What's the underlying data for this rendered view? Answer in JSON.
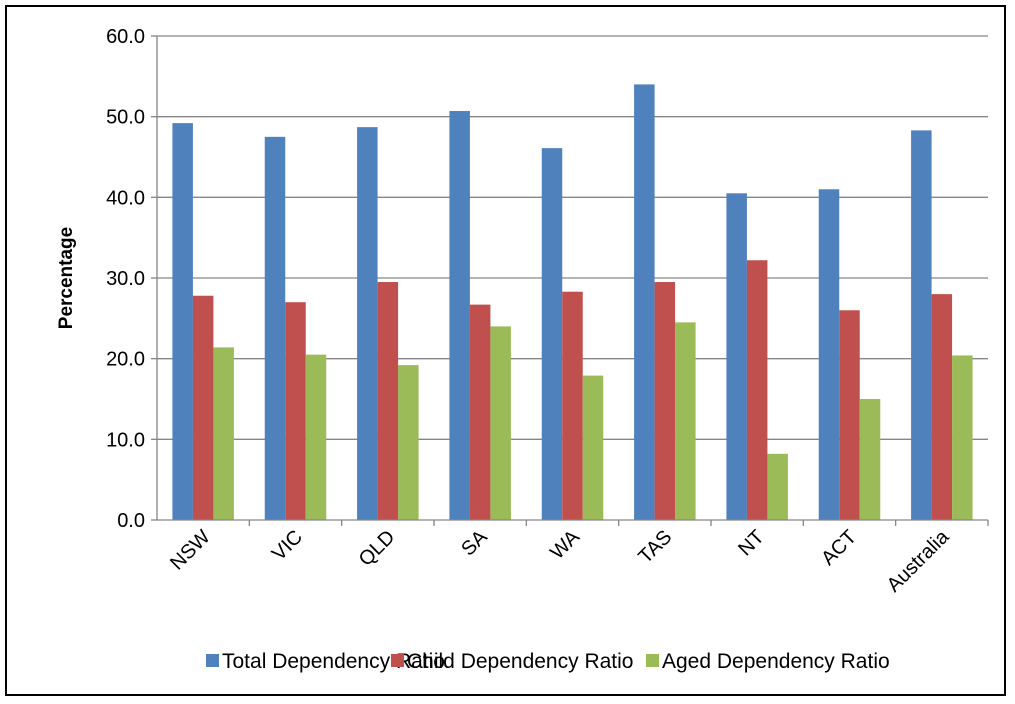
{
  "chart_data": {
    "type": "bar",
    "title": "",
    "xlabel": "",
    "ylabel": "Percentage",
    "ylim": [
      0,
      60
    ],
    "yticks": [
      "0.0",
      "10.0",
      "20.0",
      "30.0",
      "40.0",
      "50.0",
      "60.0"
    ],
    "categories": [
      "NSW",
      "VIC",
      "QLD",
      "SA",
      "WA",
      "TAS",
      "NT",
      "ACT",
      "Australia"
    ],
    "series": [
      {
        "name": "Total Dependency Ratio",
        "color": "#4F81BD",
        "values": [
          49.2,
          47.5,
          48.7,
          50.7,
          46.1,
          54.0,
          40.5,
          41.0,
          48.3
        ]
      },
      {
        "name": "Child Dependency Ratio",
        "color": "#C0504D",
        "values": [
          27.8,
          27.0,
          29.5,
          26.7,
          28.3,
          29.5,
          32.2,
          26.0,
          28.0
        ]
      },
      {
        "name": "Aged Dependency Ratio",
        "color": "#9BBB59",
        "values": [
          21.4,
          20.5,
          19.2,
          24.0,
          17.9,
          24.5,
          8.2,
          15.0,
          20.4
        ]
      }
    ],
    "grid": true,
    "legend_position": "bottom"
  }
}
